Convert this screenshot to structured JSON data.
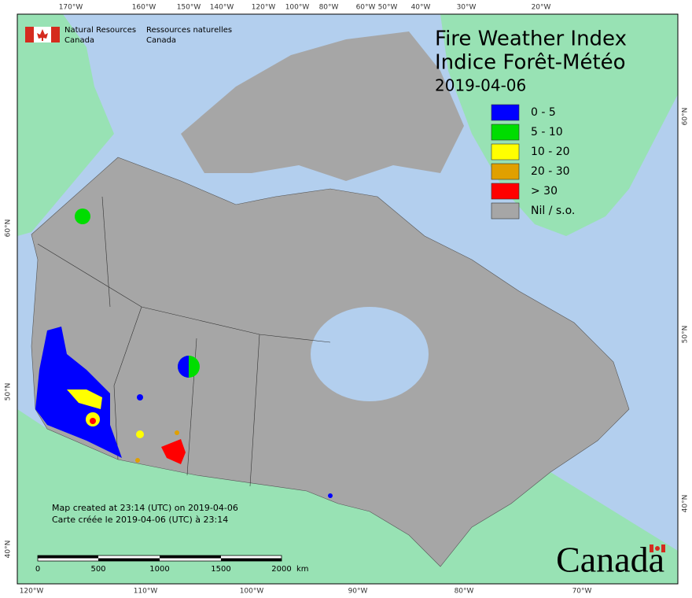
{
  "header": {
    "agency_en": "Natural Resources",
    "country_en": "Canada",
    "agency_fr": "Ressources naturelles",
    "country_fr": "Canada"
  },
  "title": {
    "line1": "Fire Weather Index",
    "line2": "Indice Forêt-Météo",
    "date": "2019-04-06"
  },
  "legend": [
    {
      "label": "0 - 5",
      "color": "#0000ff"
    },
    {
      "label": "5 - 10",
      "color": "#00dd00"
    },
    {
      "label": "10 - 20",
      "color": "#ffff00"
    },
    {
      "label": "20 - 30",
      "color": "#e0a000"
    },
    {
      "label": "> 30",
      "color": "#ff0000"
    },
    {
      "label": "Nil / s.o.",
      "color": "#a6a6a6"
    }
  ],
  "top_labels": [
    "170°W",
    "160°W",
    "150°W",
    "140°W",
    "120°W",
    "100°W",
    "80°W",
    "60°W",
    "50°W",
    "40°W",
    "30°W",
    "20°W"
  ],
  "bottom_labels": [
    "120°W",
    "110°W",
    "100°W",
    "90°W",
    "80°W",
    "70°W"
  ],
  "left_labels": [
    "60°N",
    "50°N",
    "40°N"
  ],
  "right_labels": [
    "60°N",
    "50°N",
    "40°N"
  ],
  "notes": [
    "Map created at 23:14 (UTC) on 2019-04-06",
    "Carte créée le 2019-04-06 (UTC) à 23:14"
  ],
  "scale_bar": {
    "ticks": [
      0,
      500,
      1000,
      1500,
      2000
    ],
    "unit": "km"
  },
  "wordmark": "Canada"
}
